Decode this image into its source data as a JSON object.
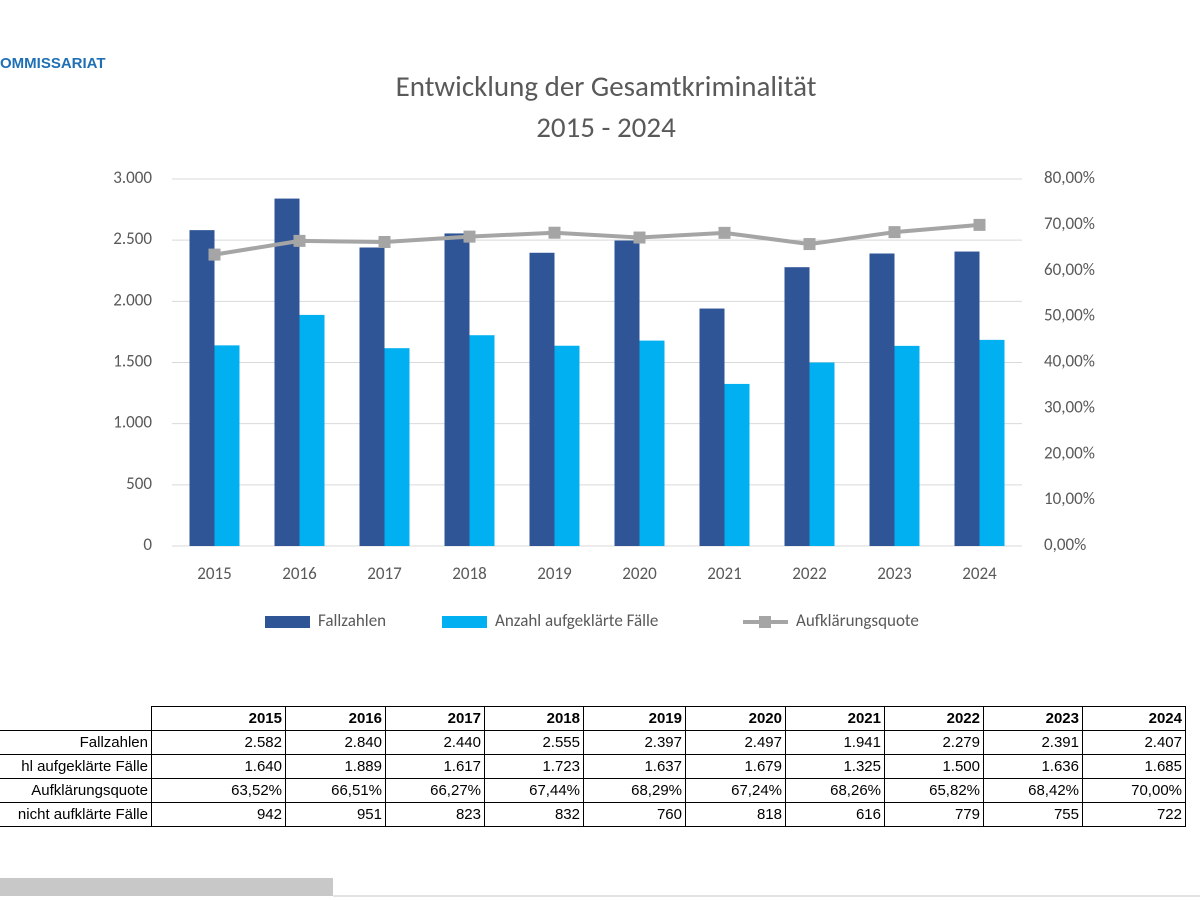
{
  "header": {
    "label": "OMMISSARIAT"
  },
  "chart_data": {
    "type": "bar",
    "title": "Entwicklung der Gesamtkriminalität",
    "subtitle": "2015 - 2024",
    "categories": [
      "2015",
      "2016",
      "2017",
      "2018",
      "2019",
      "2020",
      "2021",
      "2022",
      "2023",
      "2024"
    ],
    "series": [
      {
        "name": "Fallzahlen",
        "type": "bar",
        "color": "#2f5597",
        "values": [
          2582,
          2840,
          2440,
          2555,
          2397,
          2497,
          1941,
          2279,
          2391,
          2407
        ]
      },
      {
        "name": "Anzahl aufgeklärte Fälle",
        "type": "bar",
        "color": "#00b0f0",
        "values": [
          1640,
          1889,
          1617,
          1723,
          1637,
          1679,
          1325,
          1500,
          1636,
          1685
        ]
      },
      {
        "name": "Aufklärungsquote",
        "type": "line",
        "axis": "y2",
        "color": "#a5a5a5",
        "values": [
          63.52,
          66.51,
          66.27,
          67.44,
          68.29,
          67.24,
          68.26,
          65.82,
          68.42,
          70.0
        ]
      }
    ],
    "ylim": [
      0,
      3000
    ],
    "yticks": [
      0,
      500,
      {
        "value": 1000,
        "label": "1.000"
      },
      {
        "value": 1500,
        "label": "1.500"
      },
      {
        "value": 2000,
        "label": "2.000"
      },
      {
        "value": 2500,
        "label": "2.500"
      },
      {
        "value": 3000,
        "label": "3.000"
      }
    ],
    "y2lim": [
      0,
      80
    ],
    "y2ticks": [
      {
        "value": 0,
        "label": "0,00%"
      },
      {
        "value": 10,
        "label": "10,00%"
      },
      {
        "value": 20,
        "label": "20,00%"
      },
      {
        "value": 30,
        "label": "30,00%"
      },
      {
        "value": 40,
        "label": "40,00%"
      },
      {
        "value": 50,
        "label": "50,00%"
      },
      {
        "value": 60,
        "label": "60,00%"
      },
      {
        "value": 70,
        "label": "70,00%"
      },
      {
        "value": 80,
        "label": "80,00%"
      }
    ],
    "grid": true,
    "legend": "bottom"
  },
  "table": {
    "header": [
      "2015",
      "2016",
      "2017",
      "2018",
      "2019",
      "2020",
      "2021",
      "2022",
      "2023",
      "2024"
    ],
    "rows": [
      [
        "Fallzahlen",
        "2.582",
        "2.840",
        "2.440",
        "2.555",
        "2.397",
        "2.497",
        "1.941",
        "2.279",
        "2.391",
        "2.407"
      ],
      [
        "hl aufgeklärte Fälle",
        "1.640",
        "1.889",
        "1.617",
        "1.723",
        "1.637",
        "1.679",
        "1.325",
        "1.500",
        "1.636",
        "1.685"
      ],
      [
        "Aufklärungsquote",
        "63,52%",
        "66,51%",
        "66,27%",
        "67,44%",
        "68,29%",
        "67,24%",
        "68,26%",
        "65,82%",
        "68,42%",
        "70,00%"
      ],
      [
        "nicht aufklärte Fälle",
        "942",
        "951",
        "823",
        "832",
        "760",
        "818",
        "616",
        "779",
        "755",
        "722"
      ]
    ]
  }
}
